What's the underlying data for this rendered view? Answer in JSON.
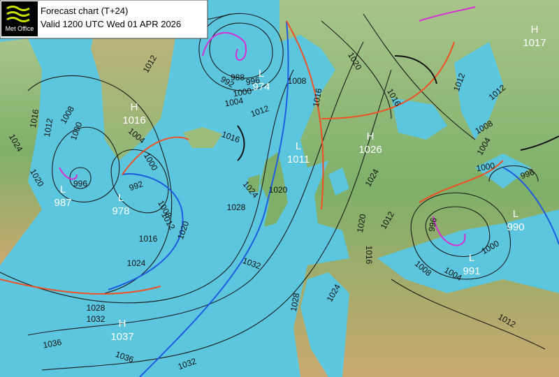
{
  "header": {
    "logo": "Met Office",
    "title": "Forecast chart (T+24)",
    "valid": "Valid 1200 UTC Wed 01 APR 2026"
  },
  "centers": [
    {
      "letter": "H",
      "value": 1017
    },
    {
      "letter": "H",
      "value": 1016
    },
    {
      "letter": "L",
      "value": 974
    },
    {
      "letter": "L",
      "value": 1011
    },
    {
      "letter": "H",
      "value": 1026
    },
    {
      "letter": "L",
      "value": 987
    },
    {
      "letter": "L",
      "value": 978
    },
    {
      "letter": "L",
      "value": 990
    },
    {
      "letter": "L",
      "value": 991
    },
    {
      "letter": "H",
      "value": 1037
    }
  ],
  "isobar_labels": [
    1012,
    1008,
    1000,
    1016,
    1012,
    1024,
    1020,
    1004,
    1000,
    992,
    1008,
    1012,
    1016,
    1020,
    1024,
    1028,
    1032,
    1036,
    1036,
    1032,
    1028,
    1024,
    1020,
    1016,
    1012,
    1004,
    1000,
    996,
    992,
    988,
    1008,
    1016,
    1020,
    1016,
    1012,
    1012,
    1008,
    1004,
    1000,
    996,
    1024,
    1020,
    1016,
    1012,
    1024,
    1028,
    1032,
    1008,
    1004,
    1000,
    996,
    1012,
    996
  ]
}
